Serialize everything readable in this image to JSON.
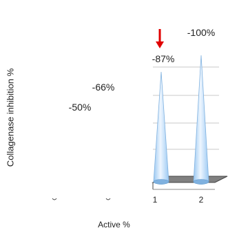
{
  "chart_data": {
    "type": "bar",
    "bar_shape": "cone-3d",
    "xlabel": "Active %",
    "ylabel": "Collagenase inhibition %",
    "series": [
      {
        "values": [
          -50,
          -66,
          -87,
          -100
        ],
        "labels": [
          "-50%",
          "-66%",
          "-87%",
          "-100%"
        ]
      }
    ],
    "categories": [
      "",
      "",
      "1",
      "2"
    ],
    "visible_ticks": [
      "1",
      "2"
    ],
    "annotation": {
      "type": "arrow",
      "target": "-87%",
      "color": "#e00000"
    },
    "grid": true,
    "legend": "none",
    "colors": {
      "cone": "#9cc9f2",
      "cone_light": "#eef6ff",
      "floor": "#808080",
      "grid": "#c8c8c8"
    }
  }
}
